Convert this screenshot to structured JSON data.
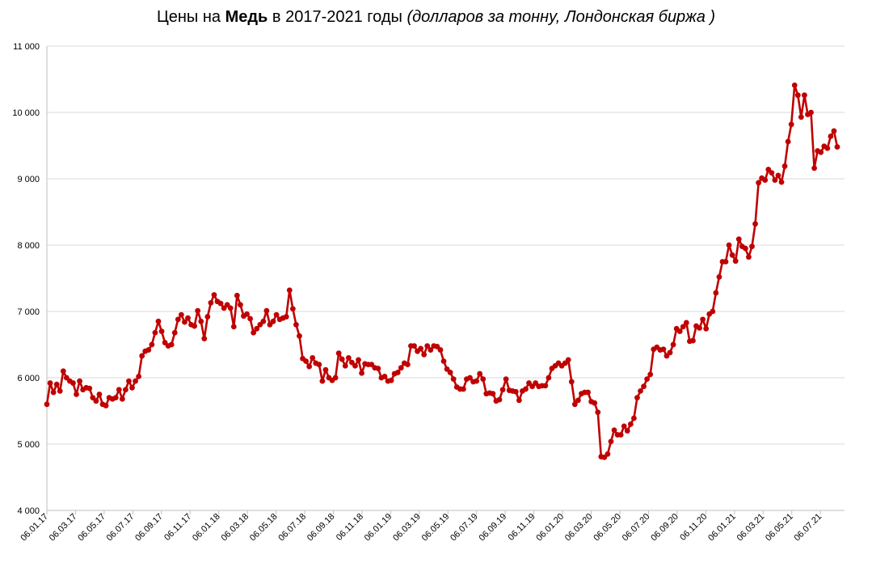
{
  "title": {
    "prefix": "Цены на ",
    "bold": "Медь",
    "middle": " в 2017-2021 годы ",
    "italic": "(долларов за тонну, Лондонская биржа )"
  },
  "chart_data": {
    "type": "line",
    "ylim": [
      4000,
      11000
    ],
    "yticks": [
      4000,
      5000,
      6000,
      7000,
      8000,
      9000,
      10000,
      11000
    ],
    "ytick_labels": [
      "4 000",
      "5 000",
      "6 000",
      "7 000",
      "8 000",
      "9 000",
      "10 000",
      "11 000"
    ],
    "x_tick_labels": [
      "06.01.17",
      "06.03.17",
      "06.05.17",
      "06.07.17",
      "06.09.17",
      "06.11.17",
      "06.01.18",
      "06.03.18",
      "06.05.18",
      "06.07.18",
      "06.09.18",
      "06.11.18",
      "06.01.19",
      "06.03.19",
      "06.05.19",
      "06.07.19",
      "06.09.19",
      "06.11.19",
      "06.01.20",
      "06.03.20",
      "06.05.20",
      "06.07.20",
      "06.09.20",
      "06.11.20",
      "06.01.21",
      "06.03.21",
      "06.05.21",
      "06.07.21"
    ],
    "grid": "horizontal",
    "line_color": "#c00000",
    "series": [
      {
        "values": [
          5600,
          5920,
          5780,
          5900,
          5800,
          6100,
          6000,
          5950,
          5920,
          5750,
          5950,
          5820,
          5850,
          5840,
          5700,
          5650,
          5750,
          5600,
          5580,
          5700,
          5680,
          5700,
          5820,
          5680,
          5820,
          5950,
          5850,
          5950,
          6020,
          6330,
          6400,
          6420,
          6500,
          6680,
          6850,
          6700,
          6530,
          6480,
          6500,
          6680,
          6880,
          6950,
          6840,
          6900,
          6800,
          6780,
          7010,
          6850,
          6590,
          6920,
          7130,
          7250,
          7150,
          7120,
          7050,
          7100,
          7050,
          6770,
          7240,
          7100,
          6930,
          6960,
          6890,
          6680,
          6740,
          6800,
          6850,
          7010,
          6800,
          6850,
          6950,
          6880,
          6900,
          6920,
          7320,
          7040,
          6800,
          6630,
          6290,
          6250,
          6170,
          6300,
          6220,
          6200,
          5950,
          6120,
          6000,
          5960,
          6000,
          6370,
          6280,
          6180,
          6300,
          6230,
          6180,
          6270,
          6070,
          6210,
          6200,
          6200,
          6150,
          6140,
          6000,
          6020,
          5950,
          5960,
          6060,
          6080,
          6150,
          6220,
          6200,
          6480,
          6480,
          6400,
          6440,
          6350,
          6480,
          6420,
          6480,
          6470,
          6420,
          6250,
          6130,
          6080,
          5980,
          5860,
          5830,
          5830,
          5980,
          6000,
          5940,
          5950,
          6060,
          5980,
          5760,
          5770,
          5760,
          5650,
          5670,
          5820,
          5980,
          5810,
          5800,
          5790,
          5660,
          5800,
          5830,
          5920,
          5870,
          5920,
          5870,
          5880,
          5880,
          6000,
          6140,
          6180,
          6220,
          6180,
          6220,
          6270,
          5940,
          5600,
          5660,
          5760,
          5780,
          5780,
          5640,
          5620,
          5480,
          4810,
          4800,
          4850,
          5040,
          5210,
          5140,
          5140,
          5270,
          5200,
          5300,
          5390,
          5700,
          5800,
          5870,
          5980,
          6050,
          6430,
          6460,
          6420,
          6430,
          6330,
          6380,
          6500,
          6740,
          6700,
          6770,
          6830,
          6550,
          6560,
          6780,
          6750,
          6880,
          6740,
          6960,
          7000,
          7280,
          7520,
          7750,
          7750,
          8000,
          7850,
          7760,
          8090,
          7980,
          7950,
          7820,
          7980,
          8320,
          8940,
          9010,
          8980,
          9140,
          9090,
          8980,
          9050,
          8950,
          9190,
          9560,
          9820,
          10410,
          10260,
          9930,
          10260,
          9970,
          10000,
          9160,
          9420,
          9400,
          9490,
          9460,
          9640,
          9720,
          9480
        ]
      }
    ]
  }
}
